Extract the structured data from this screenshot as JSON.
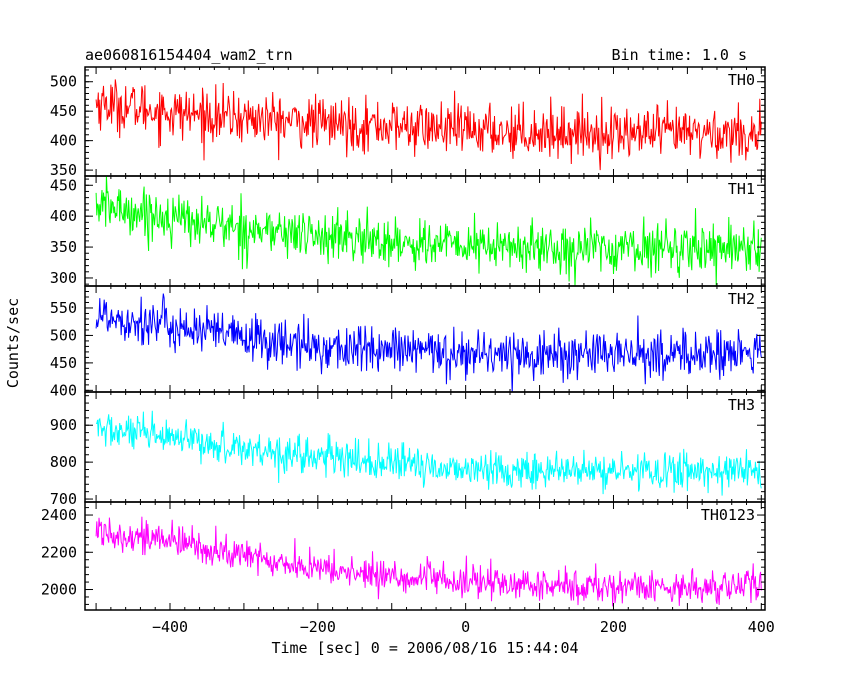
{
  "header": {
    "title": "ae060816154404_wam2_trn",
    "bin_time": "Bin time: 1.0 s"
  },
  "chart_data": [
    {
      "type": "line",
      "series": [
        {
          "name": "TH0",
          "color": "#ff0000"
        }
      ],
      "trend": [
        [
          -500,
          465
        ],
        [
          -400,
          448
        ],
        [
          -300,
          438
        ],
        [
          -200,
          430
        ],
        [
          -100,
          425
        ],
        [
          0,
          418
        ],
        [
          100,
          415
        ],
        [
          200,
          413
        ],
        [
          300,
          412
        ],
        [
          400,
          412
        ]
      ],
      "noise": 22,
      "ylim": [
        340,
        525
      ],
      "yticks": [
        350,
        400,
        450,
        500
      ],
      "ytick_labels": [
        "350",
        "400",
        "450",
        "500"
      ]
    },
    {
      "type": "line",
      "series": [
        {
          "name": "TH1",
          "color": "#00ff00"
        }
      ],
      "trend": [
        [
          -500,
          418
        ],
        [
          -400,
          398
        ],
        [
          -300,
          380
        ],
        [
          -200,
          368
        ],
        [
          -100,
          358
        ],
        [
          0,
          352
        ],
        [
          100,
          348
        ],
        [
          200,
          348
        ],
        [
          300,
          350
        ],
        [
          400,
          352
        ]
      ],
      "noise": 20,
      "ylim": [
        287,
        465
      ],
      "yticks": [
        300,
        350,
        400,
        450
      ],
      "ytick_labels": [
        "300",
        "350",
        "400",
        "450"
      ]
    },
    {
      "type": "line",
      "series": [
        {
          "name": "TH2",
          "color": "#0000ff"
        }
      ],
      "trend": [
        [
          -500,
          538
        ],
        [
          -400,
          518
        ],
        [
          -300,
          495
        ],
        [
          -200,
          478
        ],
        [
          -100,
          472
        ],
        [
          0,
          468
        ],
        [
          100,
          465
        ],
        [
          200,
          465
        ],
        [
          300,
          466
        ],
        [
          400,
          467
        ]
      ],
      "noise": 22,
      "ylim": [
        397,
        590
      ],
      "yticks": [
        400,
        450,
        500,
        550
      ],
      "ytick_labels": [
        "400",
        "450",
        "500",
        "550"
      ]
    },
    {
      "type": "line",
      "series": [
        {
          "name": "TH3",
          "color": "#00ffff"
        }
      ],
      "trend": [
        [
          -500,
          892
        ],
        [
          -400,
          862
        ],
        [
          -300,
          838
        ],
        [
          -200,
          815
        ],
        [
          -100,
          795
        ],
        [
          0,
          782
        ],
        [
          100,
          775
        ],
        [
          200,
          775
        ],
        [
          300,
          776
        ],
        [
          400,
          778
        ]
      ],
      "noise": 25,
      "ylim": [
        692,
        990
      ],
      "yticks": [
        700,
        800,
        900
      ],
      "ytick_labels": [
        "700",
        "800",
        "900"
      ]
    },
    {
      "type": "line",
      "series": [
        {
          "name": "TH0123",
          "color": "#ff00ff"
        }
      ],
      "trend": [
        [
          -500,
          2320
        ],
        [
          -400,
          2260
        ],
        [
          -300,
          2180
        ],
        [
          -200,
          2110
        ],
        [
          -100,
          2070
        ],
        [
          0,
          2040
        ],
        [
          100,
          2020
        ],
        [
          200,
          2015
        ],
        [
          300,
          2015
        ],
        [
          400,
          2020
        ]
      ],
      "noise": 45,
      "ylim": [
        1890,
        2470
      ],
      "yticks": [
        2000,
        2200,
        2400
      ],
      "ytick_labels": [
        "2000",
        "2200",
        "2400"
      ]
    }
  ],
  "xaxis": {
    "xlim": [
      -515,
      405
    ],
    "ticks": [
      -400,
      -200,
      0,
      200,
      400
    ],
    "tick_labels": [
      "−400",
      "−200",
      "0",
      "200",
      "400"
    ],
    "data_range": [
      -500,
      400
    ],
    "label": "Time [sec] 0 = 2006/08/16 15:44:04"
  },
  "yaxis": {
    "label": "Counts/sec"
  }
}
